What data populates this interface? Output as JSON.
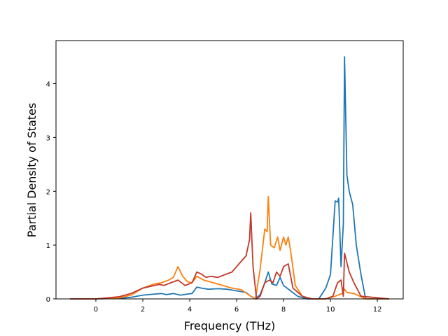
{
  "chart_data": {
    "type": "line",
    "title": "",
    "xlabel": "Frequency (THz)",
    "ylabel": "Partial Density of States",
    "xlim": [
      -1.7,
      13.1
    ],
    "ylim": [
      0,
      4.8
    ],
    "x_ticks": [
      0,
      2,
      4,
      6,
      8,
      10,
      12
    ],
    "y_ticks": [
      0,
      1,
      2,
      3,
      4
    ],
    "grid": false,
    "legend": "none",
    "series": [
      {
        "color": "#1f77b4",
        "x": [
          -1.1,
          0,
          1,
          1.5,
          2,
          2.5,
          2.8,
          3.0,
          3.3,
          3.6,
          3.9,
          4.1,
          4.3,
          4.5,
          4.8,
          5.2,
          5.6,
          6.0,
          6.4,
          6.6,
          6.8,
          7.0,
          7.2,
          7.35,
          7.5,
          7.7,
          7.85,
          8.0,
          8.3,
          8.6,
          9.0,
          9.5,
          9.8,
          10.0,
          10.2,
          10.3,
          10.35,
          10.45,
          10.55,
          10.6,
          10.7,
          10.8,
          10.95,
          11.1,
          11.3,
          11.5,
          12.5
        ],
        "y": [
          0,
          0,
          0.01,
          0.03,
          0.07,
          0.09,
          0.1,
          0.08,
          0.1,
          0.07,
          0.09,
          0.1,
          0.22,
          0.2,
          0.18,
          0.19,
          0.18,
          0.15,
          0.12,
          0.05,
          0.0,
          0.08,
          0.3,
          0.5,
          0.28,
          0.25,
          0.4,
          0.25,
          0.15,
          0.05,
          0.0,
          0.0,
          0.2,
          0.45,
          1.82,
          1.8,
          1.87,
          0.6,
          1.4,
          4.5,
          2.3,
          2.0,
          1.75,
          1.0,
          0.45,
          0.0,
          0.0
        ]
      },
      {
        "color": "#ff7f0e",
        "x": [
          -1.1,
          0,
          1,
          1.5,
          2,
          2.5,
          2.8,
          3.1,
          3.3,
          3.5,
          3.7,
          3.9,
          4.1,
          4.3,
          4.6,
          5.0,
          5.4,
          5.8,
          6.2,
          6.6,
          6.8,
          7.0,
          7.2,
          7.3,
          7.35,
          7.45,
          7.6,
          7.75,
          7.85,
          8.0,
          8.1,
          8.2,
          8.3,
          8.5,
          8.8,
          9.2,
          9.8,
          10.2,
          10.5,
          10.6,
          10.7,
          11.0,
          11.5,
          12.5
        ],
        "y": [
          0,
          0,
          0.02,
          0.07,
          0.2,
          0.28,
          0.3,
          0.35,
          0.4,
          0.6,
          0.42,
          0.32,
          0.3,
          0.42,
          0.35,
          0.3,
          0.25,
          0.2,
          0.17,
          0.05,
          0.0,
          0.55,
          1.3,
          1.25,
          1.9,
          1.0,
          0.95,
          1.15,
          0.9,
          1.15,
          1.0,
          1.15,
          0.9,
          0.25,
          0.05,
          0.0,
          0.0,
          0.05,
          0.1,
          0.18,
          0.12,
          0.1,
          0.0,
          0.0
        ]
      },
      {
        "color": "#c0392b",
        "x": [
          -1.1,
          0,
          1,
          1.5,
          2,
          2.5,
          2.7,
          2.9,
          3.2,
          3.5,
          3.8,
          4.1,
          4.3,
          4.5,
          4.7,
          4.9,
          5.2,
          5.5,
          5.8,
          6.1,
          6.4,
          6.55,
          6.6,
          6.7,
          6.85,
          7.0,
          7.2,
          7.4,
          7.55,
          7.7,
          7.85,
          8.0,
          8.2,
          8.4,
          8.8,
          9.2,
          9.8,
          10.1,
          10.3,
          10.45,
          10.55,
          10.6,
          10.8,
          11.0,
          11.3,
          12.5
        ],
        "y": [
          0,
          0,
          0.04,
          0.1,
          0.2,
          0.25,
          0.27,
          0.25,
          0.3,
          0.35,
          0.25,
          0.3,
          0.5,
          0.46,
          0.4,
          0.42,
          0.4,
          0.45,
          0.5,
          0.65,
          0.8,
          1.1,
          1.6,
          0.6,
          0.0,
          0.05,
          0.3,
          0.35,
          0.3,
          0.5,
          0.42,
          0.6,
          0.65,
          0.2,
          0.05,
          0.0,
          0.0,
          0.05,
          0.3,
          0.35,
          0.05,
          0.85,
          0.5,
          0.3,
          0.05,
          0.0
        ]
      }
    ]
  }
}
